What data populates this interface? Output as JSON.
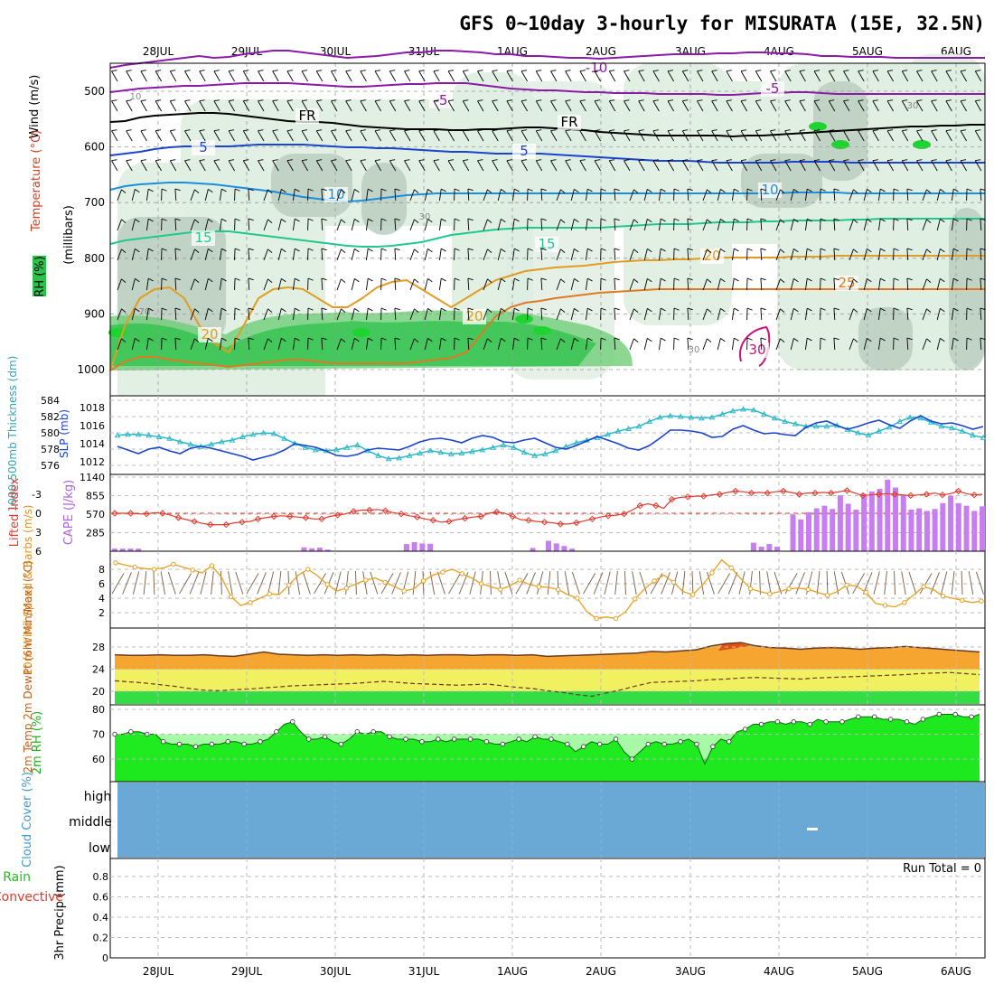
{
  "chart_data": {
    "type": "meteogram",
    "title": "GFS 0~10day 3-hourly for MISURATA (15E, 32.5N)",
    "x_labels": [
      "28JUL",
      "29JUL",
      "30JUL",
      "31JUL",
      "1AUG",
      "2AUG",
      "3AUG",
      "4AUG",
      "5AUG",
      "6AUG"
    ],
    "upper_air": {
      "ylabel_unit": "(millibars)",
      "legend": {
        "rh": "RH (%)",
        "temp": "Temperature (°C)",
        "wind": "Wind (m/s)"
      },
      "yticks": [
        "500",
        "600",
        "700",
        "800",
        "900",
        "1000"
      ],
      "temp_labels": [
        "-10",
        "-5",
        "FR",
        "5",
        "10",
        "15",
        "20",
        "25",
        "30"
      ],
      "rh_labels": [
        "10",
        "30",
        "70",
        "90"
      ]
    },
    "thickness_slp": {
      "type": "line",
      "ylabel_thickness": "1000-500mb Thickness (dm)",
      "ylabel_slp": "SLP (mb)",
      "thickness_ticks": [
        "584",
        "582",
        "580",
        "578",
        "576"
      ],
      "slp_ticks": [
        "1018",
        "1016",
        "1014",
        "1012"
      ],
      "thickness": [
        579.7,
        579.8,
        579.8,
        579.7,
        579.5,
        579.3,
        578.9,
        578.6,
        578.3,
        578.6,
        578.9,
        579.1,
        579.5,
        579.8,
        580,
        579.9,
        579.3,
        578.7,
        578.2,
        577.9,
        577.8,
        577.9,
        578.2,
        578.5,
        577.8,
        577.2,
        576.8,
        576.9,
        577.2,
        577.5,
        577.8,
        577.6,
        577.4,
        577.5,
        577.7,
        577.9,
        578.2,
        578.5,
        578.2,
        577.6,
        577.2,
        577.4,
        577.8,
        578.3,
        578.8,
        579.1,
        579.4,
        579.8,
        580.2,
        580.5,
        580.8,
        581.4,
        581.9,
        582.1,
        582,
        581.9,
        581.8,
        581.9,
        582.3,
        582.7,
        582.9,
        582.8,
        582.3,
        581.8,
        581.4,
        581.1,
        580.8,
        580.8,
        580.8,
        580.9,
        580.4,
        580,
        579.7,
        580.2,
        580.7,
        581.4,
        581.9,
        581.8,
        581.3,
        580.8,
        580.6,
        580.2,
        579.7,
        579.4
      ],
      "slp": [
        1013.7,
        1013.3,
        1012.9,
        1013.4,
        1013.6,
        1013.2,
        1012.9,
        1013.5,
        1013.7,
        1013.5,
        1013.2,
        1012.9,
        1012.6,
        1012.2,
        1012.5,
        1012.8,
        1013.3,
        1014,
        1013.8,
        1013.6,
        1013.2,
        1012.7,
        1012.6,
        1012.8,
        1013.3,
        1013.5,
        1013.4,
        1013.3,
        1013.7,
        1014.2,
        1014.5,
        1014.6,
        1014.4,
        1014.1,
        1014.6,
        1014.9,
        1014.7,
        1014.2,
        1014.1,
        1014.4,
        1014.6,
        1014.1,
        1013.6,
        1013.4,
        1013.8,
        1014.3,
        1014.8,
        1014.4,
        1014,
        1013.5,
        1013.3,
        1013.8,
        1014.6,
        1015.5,
        1015.5,
        1015.4,
        1015.2,
        1014.7,
        1014.8,
        1015.6,
        1016,
        1015.5,
        1015.1,
        1015.2,
        1015,
        1014.9,
        1015.8,
        1016.3,
        1016.5,
        1016,
        1015.6,
        1015.9,
        1016.3,
        1016.6,
        1016.1,
        1015.7,
        1016.5,
        1017.1,
        1016.5,
        1016.2,
        1016.3,
        1016,
        1015.6,
        1015.9
      ]
    },
    "li_cape": {
      "ylabel_li": "Lifted Index",
      "ylabel_cape": "CAPE (J/kg)",
      "li_ticks": [
        "-3",
        "0",
        "3",
        "6"
      ],
      "cape_ticks": [
        "1140",
        "855",
        "570",
        "285"
      ],
      "lifted_index": [
        0,
        0,
        0,
        0.1,
        0.1,
        -0.1,
        0,
        0.3,
        0.7,
        1,
        1.3,
        1.6,
        1.8,
        1.8,
        1.8,
        1.5,
        1.4,
        1.3,
        0.9,
        0.7,
        0.5,
        0.4,
        0.5,
        0.6,
        0.7,
        0.9,
        0.9,
        0.5,
        0.3,
        0.1,
        -0.3,
        -0.5,
        -0.5,
        -0.6,
        -0.4,
        -0.1,
        0.1,
        0.4,
        0.6,
        0.9,
        1.1,
        1.4,
        1.3,
        1,
        0.8,
        0.6,
        0.5,
        0,
        -0.2,
        0,
        0.5,
        1,
        1.1,
        1.3,
        1.4,
        1.5,
        1.7,
        1.7,
        1.5,
        1.2,
        0.9,
        0.6,
        0.4,
        0.3,
        0.1,
        -0.5,
        -1.2,
        -1.5,
        -1.2,
        -0.8,
        -2.2,
        -2.5,
        -2.6,
        -2.7,
        -2.7,
        -2.9,
        -3,
        -3.3,
        -3.5,
        -3.4,
        -3.2,
        -3.3,
        -3.2,
        -3.4,
        -3.5,
        -3.3,
        -3,
        -3.2,
        -3.2,
        -3.3,
        -3.2,
        -3.4,
        -3.6,
        -3.2,
        -2.8,
        -2.9,
        -3,
        -3.1,
        -3,
        -2.9,
        -2.8,
        -2.9,
        -3,
        -3.2,
        -2.9,
        -3.1,
        -3.5,
        -3.1,
        -2.9,
        -3
      ],
      "cape": [
        40,
        40,
        40,
        40,
        0,
        0,
        0,
        0,
        0,
        0,
        0,
        0,
        0,
        0,
        0,
        0,
        0,
        0,
        0,
        0,
        0,
        0,
        0,
        0,
        60,
        45,
        55,
        25,
        0,
        0,
        0,
        0,
        0,
        0,
        0,
        0,
        0,
        110,
        140,
        120,
        115,
        0,
        0,
        0,
        0,
        0,
        0,
        0,
        0,
        0,
        0,
        0,
        0,
        50,
        0,
        160,
        120,
        80,
        40,
        0,
        0,
        0,
        0,
        0,
        0,
        0,
        0,
        0,
        0,
        0,
        0,
        0,
        0,
        0,
        0,
        0,
        0,
        0,
        0,
        0,
        0,
        130,
        70,
        110,
        70,
        0,
        565,
        490,
        600,
        660,
        700,
        650,
        860,
        730,
        640,
        880,
        920,
        960,
        1100,
        980,
        870,
        640,
        660,
        620,
        650,
        740,
        850,
        740,
        700,
        620,
        690
      ]
    },
    "wind10": {
      "ylabel": "10m Wind Speed & Barbs (m/s)",
      "yticks": [
        "8",
        "6",
        "4",
        "2"
      ],
      "speed": [
        8.9,
        8.6,
        8.3,
        8.1,
        8,
        8.2,
        8.7,
        8.3,
        7.9,
        7.5,
        8.5,
        6.9,
        4.2,
        3,
        3.4,
        4,
        4.6,
        4.5,
        5.8,
        7.2,
        8,
        7.1,
        5.9,
        5,
        5.4,
        6,
        6.5,
        6.8,
        6.2,
        5.6,
        5,
        5.3,
        6.4,
        7.2,
        7.6,
        8,
        7.4,
        6.8,
        6,
        5.6,
        5.2,
        5.7,
        6.5,
        5.9,
        5.6,
        5.5,
        5.2,
        4.5,
        4,
        2.1,
        1.2,
        1.4,
        1.2,
        2.1,
        3.9,
        5.3,
        6.4,
        7.2,
        6.2,
        4.9,
        4.5,
        5.8,
        7.5,
        9.3,
        8.2,
        6.7,
        5.3,
        4.9,
        4.6,
        4.9,
        5.3,
        5.4,
        5.2,
        4.8,
        4.4,
        4.9,
        5.8,
        5.7,
        4.8,
        3.3,
        3,
        2.8,
        3.4,
        4.5,
        5.6,
        5.2,
        4.3,
        4,
        3.7,
        3.4,
        3.6
      ]
    },
    "temp2m": {
      "ylabel": "2m Temp 2m DewPt (6hr Min/Max) (°C)",
      "yticks": [
        "28",
        "24",
        "20"
      ],
      "temp": [
        26.6,
        26.5,
        26.5,
        26.6,
        26.5,
        26.5,
        26.6,
        26.4,
        26.3,
        26.7,
        27.1,
        26.7,
        26.6,
        26.5,
        26.6,
        26.5,
        26.6,
        26.5,
        26.6,
        26.5,
        26.6,
        26.5,
        26.6,
        26.6,
        26.5,
        26.6,
        26.6,
        26.5,
        26.6,
        26.3,
        26.4,
        26.5,
        26.6,
        26.7,
        26.8,
        26.9,
        27.2,
        27.1,
        27.3,
        27.5,
        28.2,
        28.6,
        28.8,
        28.2,
        27.9,
        27.8,
        27.6,
        27.8,
        27.9,
        27.8,
        27.6,
        27.8,
        27.9,
        28.1,
        27.9,
        27.7,
        27.5,
        27.3,
        27.1
      ],
      "dewpoint": [
        21.9,
        21.7,
        21.5,
        21.2,
        20.9,
        20.5,
        20.2,
        20.1,
        20.3,
        20.4,
        20.6,
        20.8,
        21,
        21.1,
        21.2,
        21.3,
        21.4,
        21.6,
        21.8,
        21.6,
        21.4,
        21.3,
        21.2,
        21.1,
        21.2,
        21.3,
        21,
        20.7,
        20.5,
        20.1,
        19.8,
        19.4,
        19.1,
        19.7,
        20.3,
        21,
        21.6,
        21.7,
        21.8,
        21.9,
        22.1,
        22.2,
        22.4,
        22.5,
        22.4,
        22.3,
        22.2,
        22.4,
        22.5,
        22.6,
        22.7,
        22.8,
        22.9,
        23,
        23.2,
        23.3,
        23.4,
        23.2,
        23
      ]
    },
    "rh2m": {
      "ylabel": "2m RH (%)",
      "yticks": [
        "80",
        "70",
        "60"
      ],
      "values": [
        70,
        70,
        71,
        71,
        70,
        70,
        67,
        66,
        66,
        66,
        65,
        66,
        66,
        66,
        67,
        67,
        66,
        66,
        67,
        68,
        71,
        74,
        75,
        71,
        68,
        68,
        69,
        67,
        66,
        68,
        71,
        70,
        71,
        71,
        69,
        68,
        68,
        68,
        67,
        67,
        68,
        67,
        68,
        68,
        68,
        68,
        67,
        66,
        66,
        67,
        68,
        67,
        69,
        68,
        68,
        67,
        66,
        63,
        65,
        67,
        66,
        66,
        68,
        63,
        60,
        63,
        66,
        67,
        66,
        66,
        67,
        68,
        66,
        58,
        65,
        68,
        67,
        71,
        72,
        74,
        74,
        75,
        75,
        74,
        75,
        75,
        74,
        76,
        75,
        75,
        75,
        76,
        77,
        77,
        77,
        76,
        76,
        76,
        75,
        74,
        76,
        77,
        78,
        78,
        78,
        77,
        77,
        78
      ]
    },
    "cloud": {
      "ylabel": "Cloud Cover (%)",
      "levels": [
        "high",
        "middle",
        "low"
      ]
    },
    "precip": {
      "ylabel": "3hr Precip (mm)",
      "legend_total": "Total / Rain",
      "legend_convective": "Convective",
      "run_total": "Run Total = 0",
      "yticks": [
        "0.8",
        "0.6",
        "0.4",
        "0.2",
        "0"
      ],
      "values": []
    },
    "colors": {
      "rh_green": "#2cc24a",
      "rh_light": "#dfeee1",
      "slp": "#1a44cc",
      "thickness": "#2ab8c8",
      "li": "#e03a2c",
      "cape": "#c77ef0",
      "wind": "#e6a020",
      "temp_fill": "#f5a530",
      "dew_fill": "#f0f060",
      "rh_fill": "#22ee22",
      "cloud": "#6aa9d6"
    }
  }
}
